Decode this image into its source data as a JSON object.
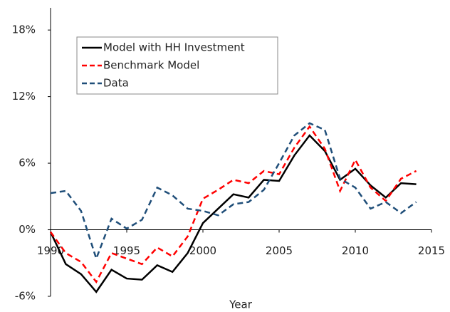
{
  "chart_data": {
    "type": "line",
    "x_label": "Year",
    "x": [
      1990,
      1991,
      1992,
      1993,
      1994,
      1995,
      1996,
      1997,
      1998,
      1999,
      2000,
      2001,
      2002,
      2003,
      2004,
      2005,
      2006,
      2007,
      2008,
      2009,
      2010,
      2011,
      2012,
      2013,
      2014
    ],
    "series": [
      {
        "name": "Model with HH Investment",
        "color": "#000000",
        "dashed": false,
        "values": [
          -0.2,
          -3.1,
          -4.0,
          -5.6,
          -3.6,
          -4.4,
          -4.5,
          -3.2,
          -3.8,
          -2.1,
          0.6,
          1.9,
          3.2,
          2.9,
          4.5,
          4.4,
          6.7,
          8.5,
          7.1,
          4.5,
          5.5,
          4.0,
          2.9,
          4.2,
          4.1
        ]
      },
      {
        "name": "Benchmark Model",
        "color": "#ff0000",
        "dashed": true,
        "values": [
          -0.2,
          -2.1,
          -2.9,
          -4.7,
          -2.1,
          -2.6,
          -3.1,
          -1.6,
          -2.4,
          -0.6,
          2.8,
          3.6,
          4.5,
          4.2,
          5.3,
          5.0,
          7.4,
          9.3,
          7.3,
          3.5,
          6.3,
          3.8,
          2.6,
          4.6,
          5.3
        ]
      },
      {
        "name": "Data",
        "color": "#1f4e79",
        "dashed": true,
        "values": [
          3.3,
          3.5,
          1.7,
          -2.6,
          1.0,
          0.1,
          0.9,
          3.8,
          3.1,
          1.9,
          1.7,
          1.3,
          2.3,
          2.5,
          3.6,
          6.0,
          8.5,
          9.6,
          9.0,
          4.6,
          3.8,
          1.9,
          2.5,
          1.5,
          2.5
        ]
      }
    ],
    "xlim": [
      1990,
      2015
    ],
    "xticks": [
      1990,
      1995,
      2000,
      2005,
      2010,
      2015
    ],
    "ylim": [
      -6,
      20
    ],
    "yticks": [
      {
        "value": -6,
        "label": "-6%"
      },
      {
        "value": 0,
        "label": "0%"
      },
      {
        "value": 6,
        "label": "6%"
      },
      {
        "value": 12,
        "label": "12%"
      },
      {
        "value": 18,
        "label": "18%"
      }
    ],
    "grid": false,
    "legend": "upper-left"
  }
}
